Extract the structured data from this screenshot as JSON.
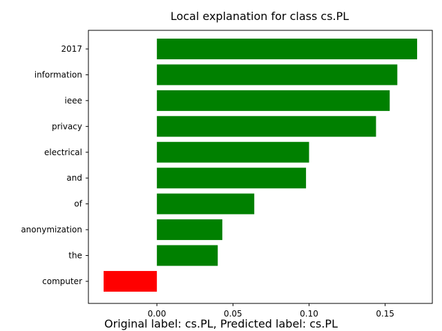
{
  "chart_data": {
    "type": "bar",
    "orientation": "horizontal",
    "title": "Local explanation for class cs.PL",
    "categories": [
      "2017",
      "information",
      "ieee",
      "privacy",
      "electrical",
      "and",
      "of",
      "anonymization",
      "the",
      "computer"
    ],
    "values": [
      0.171,
      0.158,
      0.153,
      0.144,
      0.1,
      0.098,
      0.064,
      0.043,
      0.04,
      -0.035
    ],
    "xlim": [
      -0.045,
      0.181
    ],
    "xticks": [
      0.0,
      0.05,
      0.1,
      0.15
    ],
    "xtick_labels": [
      "0.00",
      "0.05",
      "0.10",
      "0.15"
    ],
    "xlabel": "",
    "ylabel": "",
    "grid": false,
    "colors": {
      "positive": "#008000",
      "negative": "#ff0000"
    }
  },
  "caption": "Original label: cs.PL, Predicted label: cs.PL"
}
